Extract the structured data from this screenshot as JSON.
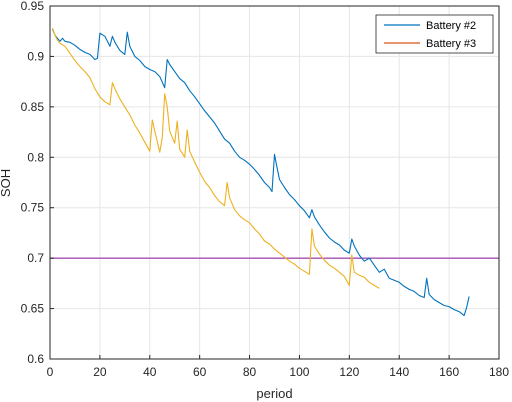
{
  "chart_data": {
    "type": "line",
    "xlabel": "period",
    "ylabel": "SOH",
    "xlim": [
      0,
      180
    ],
    "ylim": [
      0.6,
      0.95
    ],
    "xticks": [
      "0",
      "20",
      "40",
      "60",
      "80",
      "100",
      "120",
      "140",
      "160",
      "180"
    ],
    "yticks": [
      "0.6",
      "0.65",
      "0.7",
      "0.75",
      "0.8",
      "0.85",
      "0.9",
      "0.95"
    ],
    "grid": true,
    "legend_position": "top-right",
    "threshold": {
      "y": 0.7,
      "color": "#a64fb5"
    },
    "series": [
      {
        "name": "Battery #2",
        "color": "#0072BD",
        "x": [
          1,
          2,
          3,
          4,
          5,
          6,
          8,
          10,
          12,
          14,
          16,
          18,
          19,
          20,
          22,
          24,
          25,
          26,
          28,
          30,
          31,
          32,
          34,
          36,
          38,
          40,
          42,
          44,
          46,
          47,
          48,
          50,
          52,
          54,
          56,
          58,
          60,
          62,
          64,
          66,
          68,
          70,
          72,
          74,
          76,
          78,
          80,
          82,
          84,
          86,
          88,
          89,
          90,
          91,
          92,
          94,
          96,
          98,
          100,
          102,
          104,
          105,
          106,
          108,
          110,
          112,
          114,
          116,
          118,
          120,
          121,
          122,
          124,
          126,
          128,
          130,
          132,
          134,
          136,
          138,
          140,
          142,
          144,
          146,
          148,
          150,
          151,
          152,
          154,
          156,
          158,
          160,
          162,
          164,
          166,
          167,
          168
        ],
        "y": [
          0.927,
          0.921,
          0.918,
          0.915,
          0.918,
          0.915,
          0.914,
          0.911,
          0.907,
          0.904,
          0.902,
          0.897,
          0.898,
          0.923,
          0.92,
          0.91,
          0.92,
          0.914,
          0.906,
          0.902,
          0.924,
          0.91,
          0.9,
          0.896,
          0.89,
          0.887,
          0.885,
          0.88,
          0.869,
          0.897,
          0.892,
          0.885,
          0.878,
          0.874,
          0.866,
          0.86,
          0.853,
          0.846,
          0.84,
          0.834,
          0.826,
          0.818,
          0.814,
          0.806,
          0.8,
          0.797,
          0.793,
          0.788,
          0.782,
          0.775,
          0.77,
          0.766,
          0.803,
          0.79,
          0.778,
          0.77,
          0.763,
          0.758,
          0.752,
          0.747,
          0.74,
          0.748,
          0.741,
          0.733,
          0.726,
          0.72,
          0.716,
          0.713,
          0.708,
          0.705,
          0.719,
          0.712,
          0.703,
          0.697,
          0.7,
          0.693,
          0.686,
          0.689,
          0.68,
          0.678,
          0.676,
          0.672,
          0.669,
          0.667,
          0.663,
          0.661,
          0.68,
          0.664,
          0.659,
          0.656,
          0.653,
          0.652,
          0.649,
          0.647,
          0.643,
          0.651,
          0.662
        ]
      },
      {
        "name": "Battery #3",
        "color": "#D95319",
        "legend_only": true
      },
      {
        "name": "",
        "color": "#EDB120",
        "x": [
          1,
          2,
          3,
          4,
          6,
          8,
          10,
          12,
          14,
          16,
          18,
          20,
          22,
          24,
          25,
          26,
          28,
          30,
          32,
          34,
          36,
          38,
          40,
          41,
          42,
          44,
          45,
          46,
          47,
          48,
          50,
          51,
          52,
          54,
          55,
          56,
          58,
          60,
          62,
          64,
          66,
          68,
          70,
          71,
          72,
          74,
          76,
          78,
          80,
          82,
          84,
          86,
          88,
          90,
          92,
          94,
          96,
          98,
          100,
          102,
          104,
          105,
          106,
          108,
          110,
          112,
          114,
          116,
          118,
          120,
          121,
          122,
          124,
          126,
          128,
          130,
          132
        ],
        "y": [
          0.928,
          0.921,
          0.916,
          0.913,
          0.91,
          0.903,
          0.896,
          0.89,
          0.885,
          0.879,
          0.868,
          0.86,
          0.855,
          0.852,
          0.874,
          0.868,
          0.858,
          0.85,
          0.842,
          0.832,
          0.824,
          0.815,
          0.806,
          0.837,
          0.826,
          0.805,
          0.82,
          0.863,
          0.85,
          0.826,
          0.814,
          0.836,
          0.808,
          0.8,
          0.827,
          0.806,
          0.795,
          0.785,
          0.776,
          0.77,
          0.762,
          0.756,
          0.752,
          0.775,
          0.76,
          0.748,
          0.742,
          0.738,
          0.735,
          0.729,
          0.724,
          0.717,
          0.714,
          0.709,
          0.705,
          0.701,
          0.697,
          0.694,
          0.69,
          0.687,
          0.684,
          0.729,
          0.712,
          0.704,
          0.698,
          0.693,
          0.69,
          0.686,
          0.682,
          0.673,
          0.703,
          0.686,
          0.683,
          0.681,
          0.676,
          0.673,
          0.67
        ]
      }
    ]
  }
}
